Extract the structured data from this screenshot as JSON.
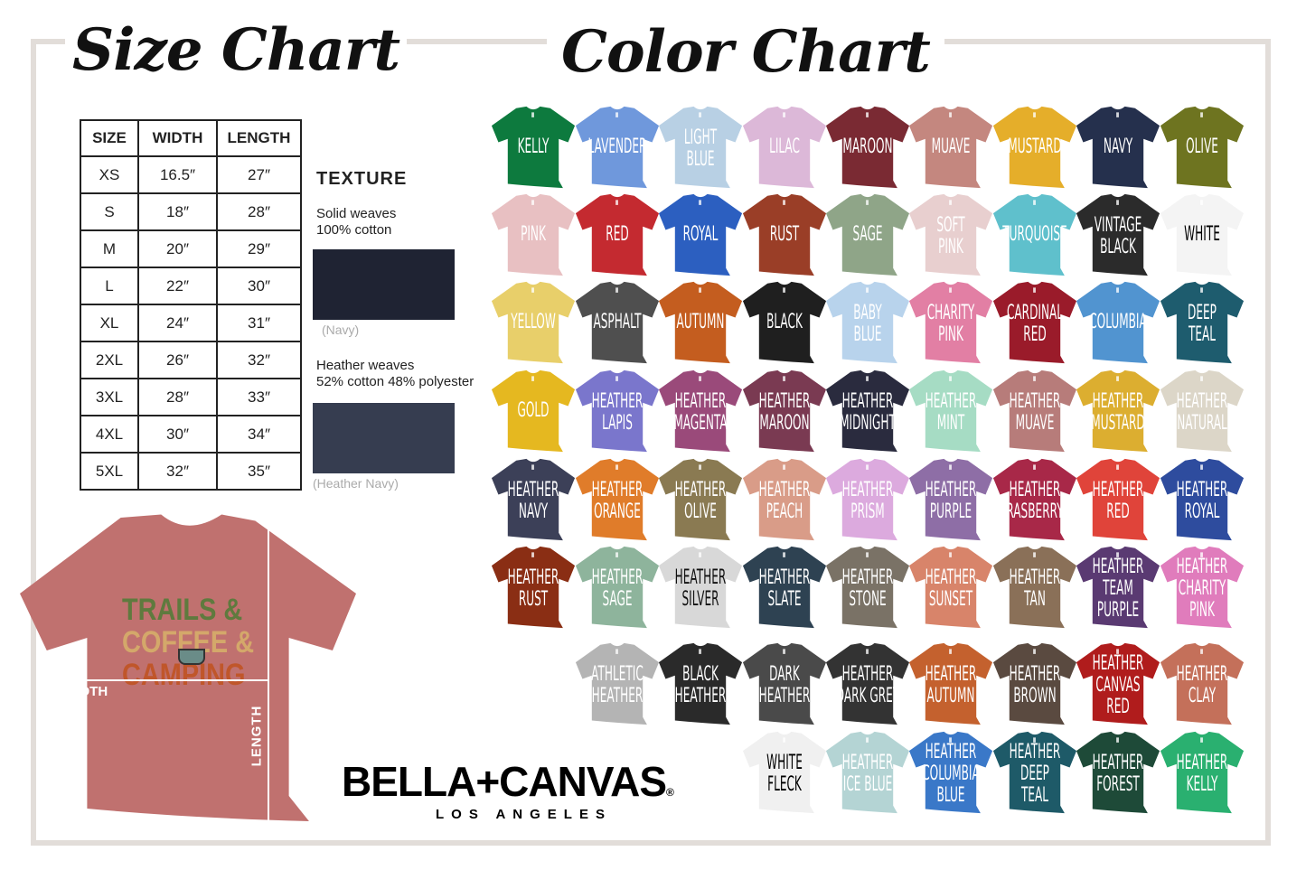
{
  "titles": {
    "size": "Size Chart",
    "color": "Color Chart"
  },
  "size_table": {
    "headers": [
      "SIZE",
      "WIDTH",
      "LENGTH"
    ],
    "rows": [
      [
        "XS",
        "16.5″",
        "27″"
      ],
      [
        "S",
        "18″",
        "28″"
      ],
      [
        "M",
        "20″",
        "29″"
      ],
      [
        "L",
        "22″",
        "30″"
      ],
      [
        "XL",
        "24″",
        "31″"
      ],
      [
        "2XL",
        "26″",
        "32″"
      ],
      [
        "3XL",
        "28″",
        "33″"
      ],
      [
        "4XL",
        "30″",
        "34″"
      ],
      [
        "5XL",
        "32″",
        "35″"
      ]
    ]
  },
  "texture": {
    "heading": "TEXTURE",
    "solid_line1": "Solid weaves",
    "solid_line2": "100% cotton",
    "solid_caption": "(Navy)",
    "solid_color": "#1f2333",
    "heather_line1": "Heather weaves",
    "heather_line2": "52% cotton 48% polyester",
    "heather_caption": "(Heather Navy)",
    "heather_color": "#363d50"
  },
  "sample_shirt": {
    "color": "#c0716f",
    "design": [
      "TRAILS &",
      "COFFEE &",
      "CAMPING"
    ],
    "width_label": "WIDTH",
    "length_label": "LENGTH"
  },
  "brand": {
    "name": "BELLA+CANVAS",
    "reg": "®",
    "sub": "LOS ANGELES"
  },
  "colors": [
    [
      [
        [
          "KELLY"
        ],
        "#0d7a3e"
      ],
      [
        [
          "LAVENDER"
        ],
        "#6f98dc"
      ],
      [
        [
          "LIGHT",
          "BLUE"
        ],
        "#b8d0e4"
      ],
      [
        [
          "LILAC"
        ],
        "#dcb8d8"
      ],
      [
        [
          "MAROON"
        ],
        "#7a2a33"
      ],
      [
        [
          "MUAVE"
        ],
        "#c4877f"
      ],
      [
        [
          "MUSTARD"
        ],
        "#e5ae2a"
      ],
      [
        [
          "NAVY"
        ],
        "#25304d"
      ],
      [
        [
          "OLIVE"
        ],
        "#6e7420"
      ]
    ],
    [
      [
        [
          "PINK"
        ],
        "#e8c0c2"
      ],
      [
        [
          "RED"
        ],
        "#c42a30"
      ],
      [
        [
          "ROYAL"
        ],
        "#2c5fc0"
      ],
      [
        [
          "RUST"
        ],
        "#9a3e27"
      ],
      [
        [
          "SAGE"
        ],
        "#8fa588"
      ],
      [
        [
          "SOFT",
          "PINK"
        ],
        "#e8cfcf"
      ],
      [
        [
          "TURQUOISE"
        ],
        "#5fc0cc"
      ],
      [
        [
          "VINTAGE",
          "BLACK"
        ],
        "#2b2b2b"
      ],
      [
        [
          "WHITE"
        ],
        "#f4f4f4",
        "#000"
      ]
    ],
    [
      [
        [
          "YELLOW"
        ],
        "#e8cf6a"
      ],
      [
        [
          "ASPHALT"
        ],
        "#4f4f4f"
      ],
      [
        [
          "AUTUMN"
        ],
        "#c45d1f"
      ],
      [
        [
          "BLACK"
        ],
        "#1f1f1f"
      ],
      [
        [
          "BABY",
          "BLUE"
        ],
        "#b8d3ec"
      ],
      [
        [
          "CHARITY",
          "PINK"
        ],
        "#e27fa4"
      ],
      [
        [
          "CARDINAL",
          "RED"
        ],
        "#9a1b2a"
      ],
      [
        [
          "COLUMBIA"
        ],
        "#5194d0"
      ],
      [
        [
          "DEEP",
          "TEAL"
        ],
        "#1e5c6e"
      ]
    ],
    [
      [
        [
          "GOLD"
        ],
        "#e5b820"
      ],
      [
        [
          "HEATHER",
          "LAPIS"
        ],
        "#7a76cc"
      ],
      [
        [
          "HEATHER",
          "MAGENTA"
        ],
        "#9a4a7a"
      ],
      [
        [
          "HEATHER",
          "MAROON"
        ],
        "#7a3a52"
      ],
      [
        [
          "HEATHER",
          "MIDNIGHT"
        ],
        "#2a2b3e"
      ],
      [
        [
          "HEATHER",
          "MINT"
        ],
        "#a6dcc4"
      ],
      [
        [
          "HEATHER",
          "MUAVE"
        ],
        "#b77c7a"
      ],
      [
        [
          "HEATHER",
          "MUSTARD"
        ],
        "#dcae30"
      ],
      [
        [
          "HEATHER",
          "NATURAL"
        ],
        "#dcd6c8"
      ]
    ],
    [
      [
        [
          "HEATHER",
          "NAVY"
        ],
        "#3c4058"
      ],
      [
        [
          "HEATHER",
          "ORANGE"
        ],
        "#e07c2a"
      ],
      [
        [
          "HEATHER",
          "OLIVE"
        ],
        "#8a7a52"
      ],
      [
        [
          "HEATHER",
          "PEACH"
        ],
        "#d99c88"
      ],
      [
        [
          "HEATHER",
          "PRISM"
        ],
        "#dcaade"
      ],
      [
        [
          "HEATHER",
          "PURPLE"
        ],
        "#8e6ea6"
      ],
      [
        [
          "HEATHER",
          "RASBERRY"
        ],
        "#a82848"
      ],
      [
        [
          "HEATHER",
          "RED"
        ],
        "#e0443a"
      ],
      [
        [
          "HEATHER",
          "ROYAL"
        ],
        "#2e4c9e"
      ]
    ],
    [
      [
        [
          "HEATHER",
          "RUST"
        ],
        "#8a2e14"
      ],
      [
        [
          "HEATHER",
          "SAGE"
        ],
        "#8eb49c"
      ],
      [
        [
          "HEATHER",
          "SILVER"
        ],
        "#d8d8d8",
        "#111"
      ],
      [
        [
          "HEATHER",
          "SLATE"
        ],
        "#2e4252"
      ],
      [
        [
          "HEATHER",
          "STONE"
        ],
        "#7a7266"
      ],
      [
        [
          "HEATHER",
          "SUNSET"
        ],
        "#d8846a"
      ],
      [
        [
          "HEATHER",
          "TAN"
        ],
        "#8a7058"
      ],
      [
        [
          "HEATHER",
          "TEAM",
          "PURPLE"
        ],
        "#5a3a72"
      ],
      [
        [
          "HEATHER",
          "CHARITY",
          "PINK"
        ],
        "#e07cbc"
      ]
    ],
    [
      null,
      [
        [
          "ATHLETIC",
          "HEATHER"
        ],
        "#b4b4b4"
      ],
      [
        [
          "BLACK",
          "HEATHER"
        ],
        "#2a2a2a"
      ],
      [
        [
          "DARK",
          "HEATHER"
        ],
        "#4a4a4a"
      ],
      [
        [
          "HEATHER",
          "DARK GREY"
        ],
        "#333333"
      ],
      [
        [
          "HEATHER",
          "AUTUMN"
        ],
        "#c4612e"
      ],
      [
        [
          "HEATHER",
          "BROWN"
        ],
        "#5a4a40"
      ],
      [
        [
          "HEATHER",
          "CANVAS",
          "RED"
        ],
        "#b01c1c"
      ],
      [
        [
          "HEATHER",
          "CLAY"
        ],
        "#c4705a"
      ]
    ],
    [
      null,
      null,
      null,
      [
        [
          "WHITE",
          "FLECK"
        ],
        "#f0f0f0",
        "#000"
      ],
      [
        [
          "HEATHER",
          "ICE BLUE"
        ],
        "#b4d4d4"
      ],
      [
        [
          "HEATHER",
          "COLUMBIA",
          "BLUE"
        ],
        "#3a78c8"
      ],
      [
        [
          "HEATHER",
          "DEEP",
          "TEAL"
        ],
        "#1e5a68"
      ],
      [
        [
          "HEATHER",
          "FOREST"
        ],
        "#1e4a38"
      ],
      [
        [
          "HEATHER",
          "KELLY"
        ],
        "#2ab070"
      ]
    ]
  ]
}
